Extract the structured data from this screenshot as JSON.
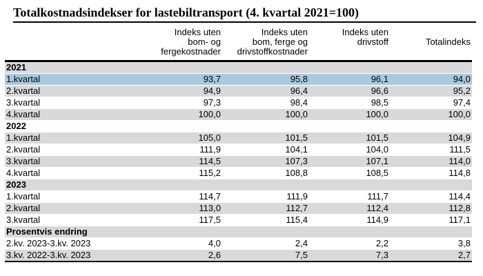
{
  "page": {
    "background": "#ffffff"
  },
  "chart_data": {
    "type": "table",
    "title": "Totalkostnadsindekser for lastebiltransport (4. kvartal 2021=100)",
    "columns": [
      "",
      "Indeks uten\nbom- og\nfergekostnader",
      "Indeks uten\nbom, ferge og\ndrivstoffkostnader",
      "Indeks uten\ndrivstoff",
      "Totalindeks"
    ],
    "rows": [
      {
        "label": "2021",
        "values": [],
        "bold": true
      },
      {
        "label": "1.kvartal",
        "values": [
          "93,7",
          "95,8",
          "96,1",
          "94,0"
        ],
        "highlighted": true
      },
      {
        "label": "2.kvartal",
        "values": [
          "94,9",
          "96,4",
          "96,6",
          "95,2"
        ]
      },
      {
        "label": "3.kvartal",
        "values": [
          "97,3",
          "98,4",
          "98,5",
          "97,4"
        ]
      },
      {
        "label": "4.kvartal",
        "values": [
          "100,0",
          "100,0",
          "100,0",
          "100,0"
        ]
      },
      {
        "label": "2022",
        "values": [],
        "bold": true
      },
      {
        "label": "1.kvartal",
        "values": [
          "105,0",
          "101,5",
          "101,5",
          "104,9"
        ]
      },
      {
        "label": "2.kvartal",
        "values": [
          "111,9",
          "104,1",
          "104,0",
          "111,5"
        ]
      },
      {
        "label": "3.kvartal",
        "values": [
          "114,5",
          "107,3",
          "107,1",
          "114,0"
        ]
      },
      {
        "label": "4.kvartal",
        "values": [
          "115,2",
          "108,8",
          "108,5",
          "114,8"
        ]
      },
      {
        "label": "2023",
        "values": [],
        "bold": true
      },
      {
        "label": "1.kvartal",
        "values": [
          "114,7",
          "111,9",
          "111,7",
          "114,4"
        ]
      },
      {
        "label": "2.kvartal",
        "values": [
          "113,0",
          "112,7",
          "112,4",
          "112,8"
        ]
      },
      {
        "label": "3.kvartal",
        "values": [
          "117,5",
          "115,4",
          "114,9",
          "117,1"
        ]
      },
      {
        "label": "Prosentvis endring",
        "values": [],
        "bold": true
      },
      {
        "label": "2.kv. 2023-3.kv. 2023",
        "values": [
          "4,0",
          "2,4",
          "2,2",
          "3,8"
        ]
      },
      {
        "label": "3.kv. 2022-3.kv. 2023",
        "values": [
          "2,6",
          "7,5",
          "7,3",
          "2,7"
        ]
      }
    ],
    "colors": {
      "highlight_row": "#a9cade",
      "stripe_row": "#d9d9d9",
      "rule": "#000000",
      "text": "#000000"
    },
    "layout": {
      "stripe_pattern": "even-rows-gray",
      "highlighted_row_index": 1,
      "numeric_alignment": "right",
      "grid": "off"
    }
  }
}
